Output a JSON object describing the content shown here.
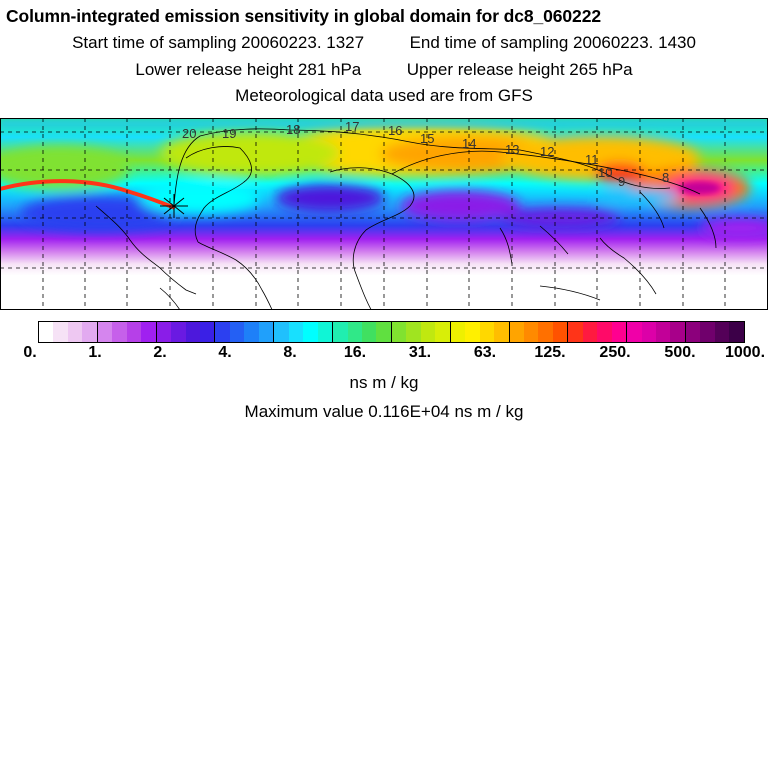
{
  "title": "Column-integrated emission sensitivity in global domain for dc8_060222",
  "sampling": {
    "start": "Start time of sampling 20060223.  1327",
    "end": "End time of sampling 20060223.  1430"
  },
  "release": {
    "lower": "Lower release height  281 hPa",
    "upper": "Upper release height  265 hPa"
  },
  "met_note": "Meteorological data used are from GFS",
  "trajectory_labels": [
    "20",
    "19",
    "18",
    "17",
    "16",
    "15",
    "14",
    "13",
    "12",
    "11",
    "10",
    "9",
    "8"
  ],
  "colorbar": {
    "tick_labels": [
      "0.",
      "1.",
      "2.",
      "4.",
      "8.",
      "16.",
      "31.",
      "63.",
      "125.",
      "250.",
      "500.",
      "1000."
    ],
    "colors": [
      "#ffffff",
      "#f6e2f6",
      "#eec8f2",
      "#e2aaf0",
      "#d585ee",
      "#c660ea",
      "#b640e8",
      "#a020f0",
      "#8a1de8",
      "#6a1ae2",
      "#4d18dc",
      "#3a20e6",
      "#2c40f0",
      "#2460f4",
      "#1e80f8",
      "#20a0fb",
      "#20c0fd",
      "#18e0fe",
      "#00ffff",
      "#10f5d6",
      "#20eeb0",
      "#30e888",
      "#40e060",
      "#60e040",
      "#80e230",
      "#a0e420",
      "#c0e810",
      "#d8ee08",
      "#eef000",
      "#fff000",
      "#ffd800",
      "#ffbe00",
      "#ffa400",
      "#ff8a00",
      "#ff7000",
      "#ff5200",
      "#ff3418",
      "#ff1a40",
      "#ff0a68",
      "#ff0090",
      "#f000a8",
      "#dc00a8",
      "#c20098",
      "#a8008a",
      "#8c007c",
      "#70006c",
      "#540058",
      "#3c0048"
    ],
    "units": "ns m / kg",
    "max_value": "Maximum value  0.116E+04 ns m / kg"
  }
}
